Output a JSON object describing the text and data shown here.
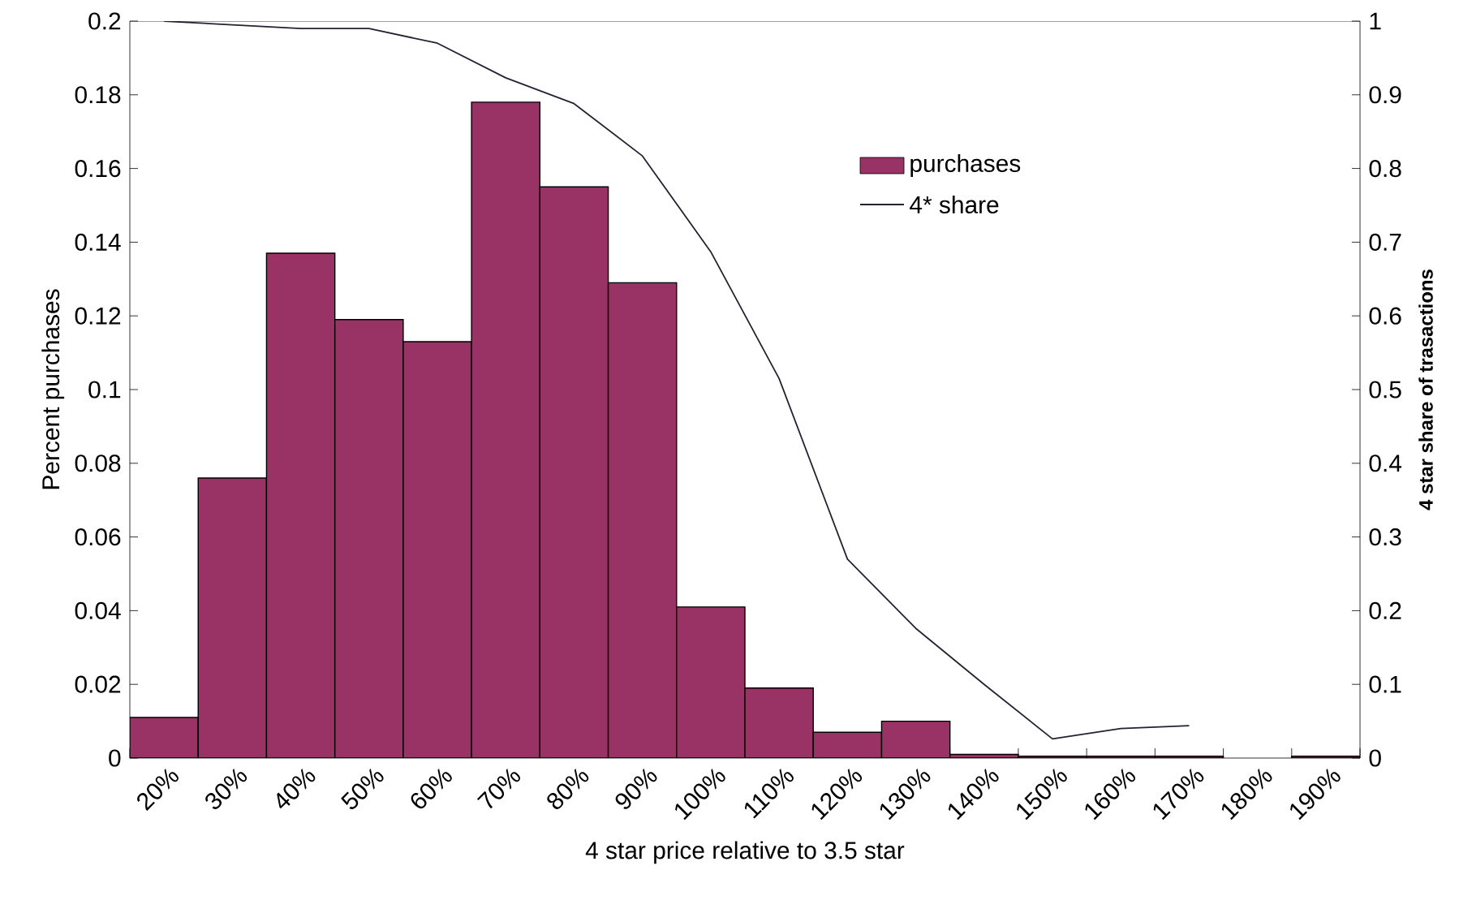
{
  "chart_data": {
    "type": "bar",
    "xlabel": "4 star price relative to 3.5 star",
    "ylabel": "Percent purchases",
    "y2label": "4 star share of trasactions",
    "categories": [
      "20%",
      "30%",
      "40%",
      "50%",
      "60%",
      "70%",
      "80%",
      "90%",
      "100%",
      "110%",
      "120%",
      "130%",
      "140%",
      "150%",
      "160%",
      "170%",
      "180%",
      "190%"
    ],
    "series": [
      {
        "name": "purchases",
        "color": "#993366",
        "values": [
          0.011,
          0.076,
          0.137,
          0.119,
          0.113,
          0.178,
          0.155,
          0.129,
          0.041,
          0.019,
          0.007,
          0.01,
          0.001,
          0.0005,
          0.0005,
          0.0005,
          null,
          0.0005
        ]
      },
      {
        "name": "4* share",
        "type": "line",
        "axis": "y2",
        "color": "#222233",
        "values": [
          1.0,
          0.995,
          0.99,
          0.99,
          0.97,
          0.923,
          0.888,
          0.817,
          0.687,
          0.515,
          0.27,
          0.176,
          0.1,
          0.026,
          0.04,
          0.044,
          null,
          null
        ]
      }
    ],
    "ylim": [
      0,
      0.2
    ],
    "yticks": [
      0,
      0.02,
      0.04,
      0.06,
      0.08,
      0.1,
      0.12,
      0.14,
      0.16,
      0.18,
      0.2
    ],
    "y2lim": [
      0,
      1
    ],
    "y2ticks": [
      0,
      0.1,
      0.2,
      0.3,
      0.4,
      0.5,
      0.6,
      0.7,
      0.8,
      0.9,
      1
    ],
    "legend": "top right"
  }
}
